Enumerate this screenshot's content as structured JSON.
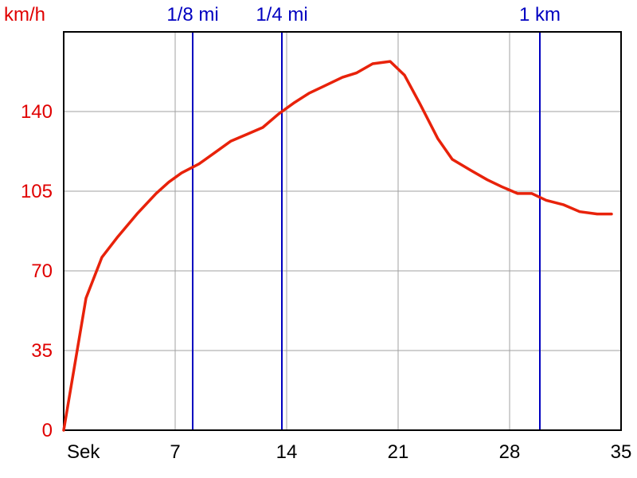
{
  "chart_data": {
    "type": "line",
    "title": "",
    "xlabel": "Sek",
    "ylabel": "km/h",
    "xlim": [
      0,
      35
    ],
    "ylim": [
      0,
      175
    ],
    "grid": true,
    "x_ticks": [
      {
        "value": 0,
        "label": "Sek"
      },
      {
        "value": 7,
        "label": "7"
      },
      {
        "value": 14,
        "label": "14"
      },
      {
        "value": 21,
        "label": "21"
      },
      {
        "value": 28,
        "label": "28"
      },
      {
        "value": 35,
        "label": "35"
      }
    ],
    "y_ticks": [
      {
        "value": 0,
        "label": "0"
      },
      {
        "value": 35,
        "label": "35"
      },
      {
        "value": 70,
        "label": "70"
      },
      {
        "value": 105,
        "label": "105"
      },
      {
        "value": 140,
        "label": "140"
      }
    ],
    "markers": [
      {
        "x": 8.1,
        "label": "1/8 mi"
      },
      {
        "x": 13.7,
        "label": "1/4 mi"
      },
      {
        "x": 29.9,
        "label": "1 km"
      }
    ],
    "series": [
      {
        "values_x": [
          0,
          1.4,
          2.4,
          3.4,
          4.6,
          5.8,
          6.6,
          7.4,
          8.5,
          9.5,
          10.5,
          11.5,
          12.5,
          13.5,
          14.5,
          15.4,
          16.3,
          17.5,
          18.4,
          19.4,
          20.5,
          21.4,
          22.4,
          23.5,
          24.4,
          25.6,
          26.6,
          27.5,
          28.5,
          29.4,
          30.3,
          31.4,
          32.4,
          33.5,
          34.4
        ],
        "values_y": [
          0,
          58,
          76,
          85,
          95,
          104,
          109,
          113,
          117,
          122,
          127,
          130,
          133,
          139,
          144,
          148,
          151,
          155,
          157,
          161,
          162,
          156,
          143,
          128,
          119,
          114,
          110,
          107,
          104,
          104,
          101,
          99,
          96,
          95,
          95
        ]
      }
    ],
    "colors": {
      "line": "#e8220a",
      "marker": "#0000c0",
      "grid": "#a0a0a0",
      "y_tick_text": "#e00000",
      "axis": "#000000"
    }
  }
}
